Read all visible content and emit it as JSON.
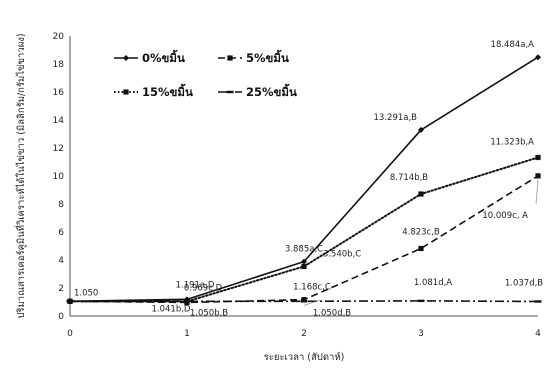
{
  "chart_data": {
    "type": "line",
    "xlabel": "ระยะเวลา (สัปดาห์)",
    "ylabel": "ปริมาณสารเคอร์คูมินที่วิเคราะห์ได้ในไข่ขาว (มิลลิกรัม/กรัมไข่ขาวผง)",
    "xlim": [
      0,
      4
    ],
    "ylim": [
      0,
      20
    ],
    "xticks": [
      "0",
      "1",
      "2",
      "3",
      "4"
    ],
    "yticks": [
      "0",
      "2",
      "4",
      "6",
      "8",
      "10",
      "12",
      "14",
      "16",
      "18",
      "20"
    ],
    "x": [
      0,
      1,
      2,
      3,
      4
    ],
    "grid": false,
    "legend_position": "top-left",
    "series": [
      {
        "name": "0%ขมิ้น",
        "style": "solid",
        "marker": "diamond",
        "values": [
          1.05,
          1.191,
          3.885,
          13.291,
          18.484
        ],
        "labels": [
          "1.050",
          "1.191a,D",
          "3.885a,C",
          "13.291a,B",
          "18.484a,A"
        ]
      },
      {
        "name": "5%ขมิ้น",
        "style": "dashed",
        "marker": "square",
        "values": [
          1.05,
          0.969,
          1.168,
          4.823,
          10.009
        ],
        "labels": [
          "",
          "0.969c,D",
          "1.168c,C",
          "4.823c,B",
          "10.009c, A"
        ]
      },
      {
        "name": "15%ขมิ้น",
        "style": "dotted",
        "marker": "square",
        "values": [
          1.05,
          1.041,
          3.54,
          8.714,
          11.323
        ],
        "labels": [
          "",
          "1.041b,D",
          "3.540b,C",
          "8.714b,B",
          "11.323b,A"
        ]
      },
      {
        "name": "25%ขมิ้น",
        "style": "dashdot",
        "marker": "dash",
        "values": [
          1.05,
          1.05,
          1.05,
          1.081,
          1.037
        ],
        "labels": [
          "",
          "1.050b,B",
          "1.050d,B",
          "1.081d,A",
          "1.037d,B"
        ]
      }
    ]
  },
  "colors": {
    "line": "#111111",
    "axis": "#555555",
    "leader": "#888888"
  }
}
